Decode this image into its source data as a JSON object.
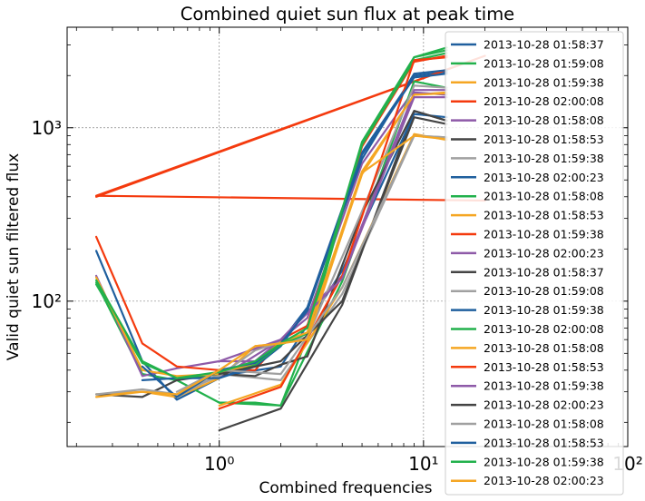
{
  "chart_data": {
    "type": "line",
    "title": "Combined quiet sun flux at peak time",
    "xlabel": "Combined frequencies",
    "ylabel": "Valid quiet sun filtered flux",
    "xscale": "log",
    "yscale": "log",
    "xlim": [
      0.18,
      100
    ],
    "ylim": [
      14.5,
      3800
    ],
    "x_tick_labels": [
      {
        "value": 1,
        "label": "10⁰"
      },
      {
        "value": 10,
        "label": "10¹"
      },
      {
        "value": 100,
        "label": "10²"
      }
    ],
    "y_tick_labels": [
      {
        "value": 100,
        "label": "10²"
      },
      {
        "value": 1000,
        "label": "10³"
      }
    ],
    "grid": true,
    "legend_position": "right",
    "series": [
      {
        "name": "2013-10-28 01:58:37",
        "color": "#1f5f9e",
        "points": [
          [
            0.25,
            195
          ],
          [
            0.42,
            45
          ],
          [
            0.62,
            27
          ],
          [
            1.0,
            36
          ],
          [
            1.5,
            43
          ],
          [
            2.0,
            58
          ],
          [
            2.7,
            92
          ],
          [
            5.0,
            720
          ],
          [
            9.0,
            2000
          ],
          [
            13.0,
            2100
          ]
        ]
      },
      {
        "name": "2013-10-28 01:59:08",
        "color": "#22b14c",
        "points": [
          [
            0.25,
            128
          ],
          [
            0.42,
            38
          ],
          [
            0.62,
            35
          ],
          [
            1.0,
            26
          ],
          [
            1.5,
            26
          ],
          [
            2.0,
            25
          ],
          [
            2.7,
            62
          ],
          [
            5.0,
            820
          ],
          [
            9.0,
            2550
          ],
          [
            13.0,
            2800
          ]
        ]
      },
      {
        "name": "2013-10-28 01:59:38",
        "color": "#f5a623",
        "points": [
          [
            0.25,
            29
          ],
          [
            0.42,
            30
          ],
          [
            0.62,
            28
          ],
          [
            1.0,
            36
          ],
          [
            1.5,
            55
          ],
          [
            2.0,
            57
          ],
          [
            2.7,
            62
          ],
          [
            5.0,
            540
          ],
          [
            9.0,
            1550
          ],
          [
            13.0,
            1600
          ]
        ]
      },
      {
        "name": "2013-10-28 02:00:08",
        "color": "#f43a0e",
        "points": [
          [
            0.25,
            400
          ],
          [
            20.0,
            2600
          ],
          [
            0.25,
            405
          ],
          [
            20.0,
            380
          ]
        ]
      },
      {
        "name": "2013-10-28 01:58:08",
        "color": "#8e5aa8",
        "points": [
          [
            0.25,
            140
          ],
          [
            0.42,
            37
          ],
          [
            0.62,
            41
          ],
          [
            1.0,
            45
          ],
          [
            1.5,
            45
          ],
          [
            2.0,
            60
          ],
          [
            2.7,
            80
          ],
          [
            5.0,
            620
          ],
          [
            9.0,
            1650
          ],
          [
            13.0,
            1650
          ]
        ]
      },
      {
        "name": "2013-10-28 01:58:53",
        "color": "#444444",
        "points": [
          [
            1.0,
            18
          ],
          [
            2.0,
            24
          ],
          [
            4.0,
            95
          ],
          [
            9.0,
            1250
          ],
          [
            13.0,
            1100
          ]
        ]
      },
      {
        "name": "2013-10-28 01:59:38",
        "color": "#a0a0a0",
        "points": [
          [
            0.62,
            28
          ],
          [
            1.0,
            38
          ],
          [
            2.0,
            35
          ],
          [
            4.0,
            110
          ],
          [
            9.0,
            900
          ],
          [
            13.0,
            880
          ]
        ]
      },
      {
        "name": "2013-10-28 02:00:23",
        "color": "#1f5f9e",
        "points": [
          [
            1.0,
            37
          ],
          [
            2.0,
            42
          ],
          [
            4.0,
            150
          ],
          [
            9.0,
            1200
          ],
          [
            13.0,
            1150
          ]
        ]
      },
      {
        "name": "2013-10-28 01:58:08",
        "color": "#22b14c",
        "points": [
          [
            1.0,
            26
          ],
          [
            2.0,
            25
          ],
          [
            4.0,
            130
          ],
          [
            9.0,
            1850
          ],
          [
            13.0,
            1700
          ]
        ]
      },
      {
        "name": "2013-10-28 01:58:53",
        "color": "#f5a623",
        "points": [
          [
            1.0,
            25
          ],
          [
            2.0,
            33
          ],
          [
            4.0,
            120
          ],
          [
            9.0,
            920
          ],
          [
            13.0,
            850
          ]
        ]
      },
      {
        "name": "2013-10-28 01:59:38",
        "color": "#f43a0e",
        "points": [
          [
            0.25,
            235
          ],
          [
            0.42,
            57
          ],
          [
            0.62,
            42
          ],
          [
            1.0,
            40
          ],
          [
            1.5,
            40
          ],
          [
            2.0,
            60
          ],
          [
            2.7,
            72
          ],
          [
            5.0,
            780
          ],
          [
            9.0,
            2400
          ],
          [
            13.0,
            2600
          ]
        ]
      },
      {
        "name": "2013-10-28 02:00:23",
        "color": "#8e5aa8",
        "points": [
          [
            1.0,
            36
          ],
          [
            2.0,
            60
          ],
          [
            4.0,
            140
          ],
          [
            9.0,
            1600
          ],
          [
            13.0,
            1550
          ]
        ]
      },
      {
        "name": "2013-10-28 01:58:37",
        "color": "#444444",
        "points": [
          [
            0.25,
            29
          ],
          [
            0.42,
            28
          ],
          [
            0.62,
            35
          ],
          [
            1.0,
            38
          ],
          [
            1.5,
            37
          ],
          [
            2.0,
            43
          ],
          [
            2.7,
            48
          ],
          [
            5.0,
            320
          ],
          [
            9.0,
            1250
          ],
          [
            13.0,
            1100
          ]
        ]
      },
      {
        "name": "2013-10-28 01:59:08",
        "color": "#a0a0a0",
        "points": [
          [
            0.25,
            29
          ],
          [
            0.42,
            31
          ],
          [
            0.62,
            29
          ],
          [
            1.0,
            37
          ],
          [
            1.5,
            52
          ],
          [
            2.0,
            58
          ],
          [
            2.7,
            62
          ],
          [
            5.0,
            330
          ],
          [
            9.0,
            1750
          ],
          [
            13.0,
            1700
          ]
        ]
      },
      {
        "name": "2013-10-28 01:59:38",
        "color": "#1f5f9e",
        "points": [
          [
            0.42,
            35
          ],
          [
            0.62,
            36
          ],
          [
            1.0,
            36
          ],
          [
            1.5,
            42
          ],
          [
            2.0,
            55
          ],
          [
            2.7,
            90
          ],
          [
            5.0,
            660
          ],
          [
            9.0,
            2050
          ],
          [
            13.0,
            2150
          ]
        ]
      },
      {
        "name": "2013-10-28 02:00:08",
        "color": "#22b14c",
        "points": [
          [
            0.25,
            125
          ],
          [
            0.42,
            44
          ],
          [
            0.62,
            36
          ],
          [
            1.0,
            38
          ],
          [
            1.5,
            43
          ],
          [
            2.0,
            56
          ],
          [
            2.7,
            65
          ],
          [
            5.0,
            800
          ],
          [
            9.0,
            2450
          ],
          [
            13.0,
            2700
          ]
        ]
      },
      {
        "name": "2013-10-28 01:58:08",
        "color": "#f5a623",
        "points": [
          [
            0.25,
            137
          ],
          [
            0.42,
            40
          ],
          [
            0.62,
            37
          ],
          [
            1.0,
            38
          ],
          [
            1.5,
            44
          ],
          [
            2.0,
            58
          ],
          [
            2.7,
            66
          ],
          [
            5.0,
            560
          ],
          [
            9.0,
            1550
          ],
          [
            13.0,
            1580
          ]
        ]
      },
      {
        "name": "2013-10-28 01:58:53",
        "color": "#f43a0e",
        "points": [
          [
            1.0,
            24
          ],
          [
            2.0,
            32
          ],
          [
            4.0,
            140
          ],
          [
            9.0,
            2450
          ],
          [
            13.0,
            2550
          ]
        ]
      },
      {
        "name": "2013-10-28 01:59:38",
        "color": "#8e5aa8",
        "points": [
          [
            1.0,
            45
          ],
          [
            2.0,
            60
          ],
          [
            4.0,
            135
          ],
          [
            9.0,
            1500
          ],
          [
            13.0,
            1500
          ]
        ]
      },
      {
        "name": "2013-10-28 02:00:23",
        "color": "#444444",
        "points": [
          [
            1.0,
            38
          ],
          [
            2.0,
            45
          ],
          [
            4.0,
            100
          ],
          [
            9.0,
            1150
          ],
          [
            13.0,
            1050
          ]
        ]
      },
      {
        "name": "2013-10-28 01:58:08",
        "color": "#a0a0a0",
        "points": [
          [
            0.62,
            30
          ],
          [
            1.0,
            40
          ],
          [
            2.0,
            38
          ],
          [
            4.0,
            120
          ],
          [
            9.0,
            900
          ],
          [
            13.0,
            880
          ]
        ]
      },
      {
        "name": "2013-10-28 01:58:53",
        "color": "#1f5f9e",
        "points": [
          [
            0.42,
            42
          ],
          [
            0.62,
            28
          ],
          [
            1.0,
            40
          ],
          [
            1.5,
            44
          ],
          [
            2.0,
            57
          ],
          [
            2.7,
            88
          ],
          [
            5.0,
            700
          ],
          [
            9.0,
            1950
          ],
          [
            13.0,
            2050
          ]
        ]
      },
      {
        "name": "2013-10-28 01:59:38",
        "color": "#22b14c",
        "points": [
          [
            0.25,
            132
          ],
          [
            0.42,
            45
          ],
          [
            0.62,
            36
          ],
          [
            1.0,
            39
          ],
          [
            1.5,
            45
          ],
          [
            2.0,
            57
          ],
          [
            2.7,
            70
          ],
          [
            5.0,
            830
          ],
          [
            9.0,
            2550
          ],
          [
            13.0,
            2900
          ]
        ]
      },
      {
        "name": "2013-10-28 02:00:23",
        "color": "#f5a623",
        "points": [
          [
            0.25,
            28
          ],
          [
            0.42,
            30
          ],
          [
            0.62,
            29
          ],
          [
            1.0,
            40
          ],
          [
            1.5,
            55
          ],
          [
            2.0,
            57
          ],
          [
            2.7,
            60
          ],
          [
            5.0,
            550
          ],
          [
            9.0,
            900
          ],
          [
            13.0,
            860
          ]
        ]
      }
    ]
  }
}
